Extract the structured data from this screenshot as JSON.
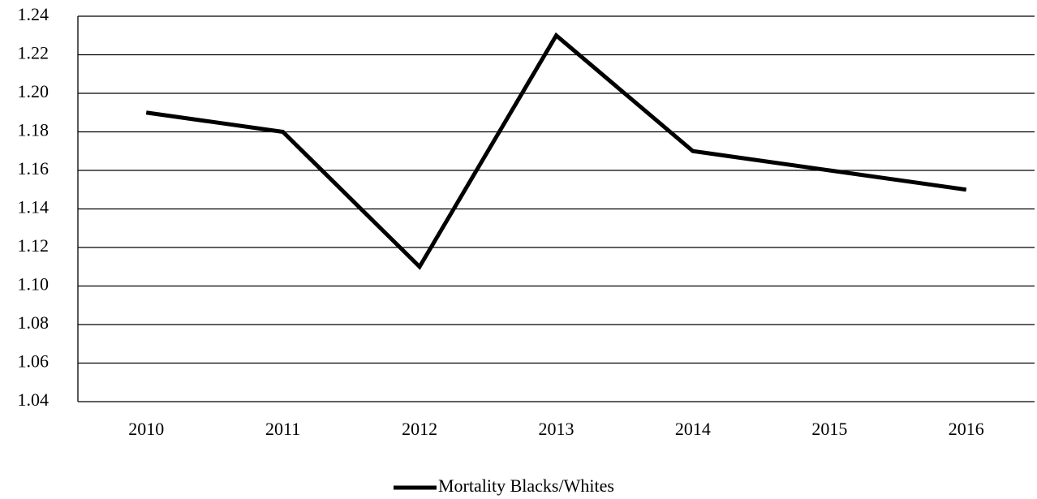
{
  "chart_data": {
    "type": "line",
    "categories": [
      "2010",
      "2011",
      "2012",
      "2013",
      "2014",
      "2015",
      "2016"
    ],
    "series": [
      {
        "name": "Mortality Blacks/Whites",
        "color": "#000000",
        "values": [
          1.19,
          1.18,
          1.11,
          1.23,
          1.17,
          1.16,
          1.15
        ]
      }
    ],
    "ylim": [
      1.04,
      1.24
    ],
    "yticks": [
      1.04,
      1.06,
      1.08,
      {
        "value": 1.1,
        "label": "1.10"
      },
      1.12,
      1.14,
      1.16,
      1.18,
      {
        "value": 1.2,
        "label": "1.20"
      },
      1.22,
      1.24
    ],
    "grid": true,
    "legend": "bottom"
  }
}
